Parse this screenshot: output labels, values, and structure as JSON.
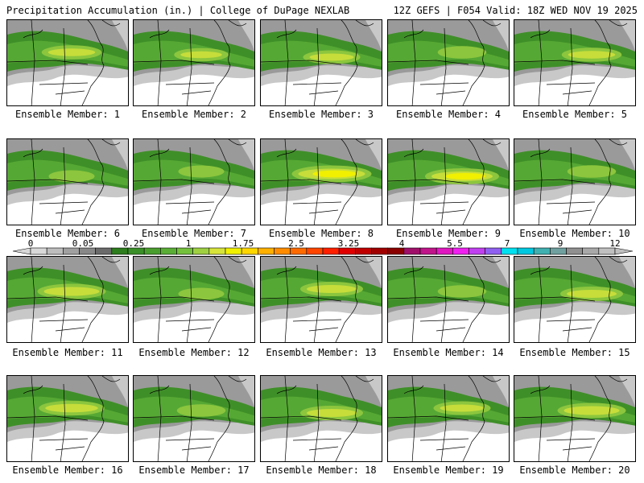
{
  "header": {
    "left": "Precipitation Accumulation (in.) | College of DuPage NEXLAB",
    "right": "12Z GEFS | F054 Valid: 18Z WED NOV 19 2025"
  },
  "panels": [
    {
      "label": "Ensemble Member: 1",
      "intensity": 0.55
    },
    {
      "label": "Ensemble Member: 2",
      "intensity": 0.45
    },
    {
      "label": "Ensemble Member: 3",
      "intensity": 0.5
    },
    {
      "label": "Ensemble Member: 4",
      "intensity": 0.35
    },
    {
      "label": "Ensemble Member: 5",
      "intensity": 0.55
    },
    {
      "label": "Ensemble Member: 6",
      "intensity": 0.3
    },
    {
      "label": "Ensemble Member: 7",
      "intensity": 0.3
    },
    {
      "label": "Ensemble Member: 8",
      "intensity": 0.9
    },
    {
      "label": "Ensemble Member: 9",
      "intensity": 0.8
    },
    {
      "label": "Ensemble Member: 10",
      "intensity": 0.35
    },
    {
      "label": "Ensemble Member: 11",
      "intensity": 0.7
    },
    {
      "label": "Ensemble Member: 12",
      "intensity": 0.3
    },
    {
      "label": "Ensemble Member: 13",
      "intensity": 0.6
    },
    {
      "label": "Ensemble Member: 14",
      "intensity": 0.35
    },
    {
      "label": "Ensemble Member: 15",
      "intensity": 0.6
    },
    {
      "label": "Ensemble Member: 16",
      "intensity": 0.65
    },
    {
      "label": "Ensemble Member: 17",
      "intensity": 0.35
    },
    {
      "label": "Ensemble Member: 18",
      "intensity": 0.6
    },
    {
      "label": "Ensemble Member: 19",
      "intensity": 0.5
    },
    {
      "label": "Ensemble Member: 20",
      "intensity": 0.7
    }
  ],
  "colorbar": {
    "labels": [
      "0",
      "0.05",
      "0.25",
      "1",
      "1.75",
      "2.5",
      "3.25",
      "4",
      "5.5",
      "7",
      "9",
      "12"
    ],
    "colors": [
      "#d8d8d8",
      "#bdbdbd",
      "#a0a0a0",
      "#888888",
      "#6b6b6b",
      "#2e7d1e",
      "#3a8f28",
      "#4a9e2f",
      "#5aae36",
      "#74c03c",
      "#9ed042",
      "#d6e33a",
      "#f0f000",
      "#ffd700",
      "#ffb000",
      "#ff8c00",
      "#ff6a00",
      "#ff4500",
      "#ff2000",
      "#e00000",
      "#c00000",
      "#a00000",
      "#8b0000",
      "#a0106a",
      "#c0148a",
      "#e018c0",
      "#f020f0",
      "#c040f0",
      "#9060f0",
      "#00e0f0",
      "#00c8e0",
      "#40b0b0",
      "#70a0a0",
      "#909090",
      "#a8a8a8",
      "#c0c0c0"
    ]
  }
}
